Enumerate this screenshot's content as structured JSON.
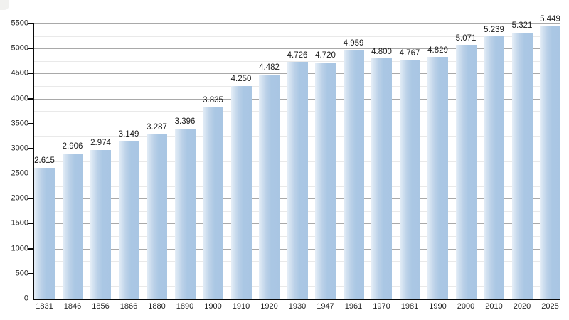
{
  "page": {
    "background": "#ffffff"
  },
  "chart_data": {
    "type": "bar",
    "title": "",
    "xlabel": "",
    "ylabel": "",
    "categories": [
      "1831",
      "1846",
      "1856",
      "1866",
      "1880",
      "1890",
      "1900",
      "1910",
      "1920",
      "1930",
      "1947",
      "1961",
      "1970",
      "1981",
      "1990",
      "2000",
      "2010",
      "2020",
      "2025"
    ],
    "values": [
      2615,
      2906,
      2974,
      3149,
      3287,
      3396,
      3835,
      4250,
      4482,
      4726,
      4720,
      4959,
      4800,
      4767,
      4829,
      5071,
      5239,
      5321,
      5449
    ],
    "value_labels": [
      "2.615",
      "2.906",
      "2.974",
      "3.149",
      "3.287",
      "3.396",
      "3.835",
      "4.250",
      "4.482",
      "4.726",
      "4.720",
      "4.959",
      "4.800",
      "4.767",
      "4.829",
      "5.071",
      "5.239",
      "5.321",
      "5.449"
    ],
    "ylim": [
      0,
      5500
    ],
    "y_major_step": 500,
    "y_minor_step": 250,
    "y_tick_labels": [
      "0",
      "500",
      "1000",
      "1500",
      "2000",
      "2500",
      "3000",
      "3500",
      "4000",
      "4500",
      "5000",
      "5500"
    ],
    "grid": true,
    "legend": "none",
    "colors": {
      "bar_fill": "#a9c6e3",
      "bar_fill_light": "#e5eef7",
      "grid_major": "#a9a9a9",
      "grid_minor": "#e9e9e9",
      "axis": "#0a0a0a",
      "text": "#1b1b1b"
    }
  }
}
